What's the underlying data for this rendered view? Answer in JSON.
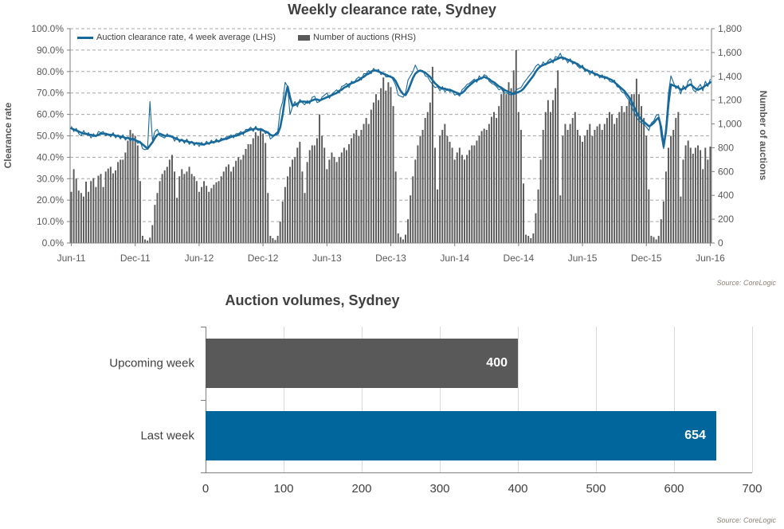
{
  "colors": {
    "line_blue": "#17699B",
    "bar_gray": "#595959",
    "volume_blue": "#00669C",
    "gridline": "#a6a6a6",
    "axis_line": "#7f7f7f",
    "text_dark": "#404040",
    "text_axis": "#595959",
    "source_text": "#8c8276",
    "value_label_white": "#ffffff"
  },
  "chart_data": [
    {
      "type": "combo",
      "title": "Weekly clearance rate, Sydney",
      "source": "Source: CoreLogic",
      "grid": "horizontal-dashed",
      "legend_position": "top-left-inside",
      "x_unit": "weeks from Jun-2011 to Jun-2016",
      "x_tick_labels": [
        "Jun-11",
        "Dec-11",
        "Jun-12",
        "Dec-12",
        "Jun-13",
        "Dec-13",
        "Jun-14",
        "Dec-14",
        "Jun-15",
        "Dec-15",
        "Jun-16"
      ],
      "x_tick_week_indices": [
        0,
        26,
        52,
        78,
        104,
        130,
        156,
        182,
        208,
        234,
        260
      ],
      "axes": {
        "left": {
          "label": "Clearance rate",
          "min": 0,
          "max": 100,
          "tick_step": 10,
          "tick_labels": [
            "0.0%",
            "10.0%",
            "20.0%",
            "30.0%",
            "40.0%",
            "50.0%",
            "60.0%",
            "70.0%",
            "80.0%",
            "90.0%",
            "100.0%"
          ]
        },
        "right": {
          "label": "Number of auctions",
          "min": 0,
          "max": 1800,
          "tick_step": 200,
          "tick_labels": [
            "0",
            "200",
            "400",
            "600",
            "800",
            "1,000",
            "1,200",
            "1,400",
            "1,600",
            "1,800"
          ]
        }
      },
      "series": [
        {
          "name": "Auction clearance rate, 4 week average (LHS)",
          "type": "line",
          "axis": "left",
          "style": "thick",
          "color": "#17699B",
          "values": [
            53.5,
            53,
            52.5,
            52,
            51.5,
            51,
            51,
            50.5,
            50.5,
            50,
            50,
            50.5,
            51,
            51,
            51,
            50.5,
            50.5,
            50.5,
            50,
            50,
            49.5,
            49.5,
            49,
            49,
            48.5,
            48.5,
            48,
            47.5,
            47,
            46,
            45,
            44,
            45.5,
            47,
            49,
            50.5,
            51,
            50.5,
            50,
            50,
            50,
            49.5,
            49,
            48.5,
            48,
            48,
            47.5,
            47.5,
            47,
            47,
            46.5,
            46.5,
            46.5,
            46,
            46,
            46.5,
            46.5,
            47,
            47,
            47.5,
            47.5,
            48,
            48.5,
            48.5,
            49,
            49.5,
            50,
            50,
            50.5,
            51,
            51.5,
            52,
            52.5,
            53,
            53,
            53.5,
            53,
            53,
            52.5,
            52,
            51.5,
            50.5,
            50,
            50.5,
            51,
            54,
            60,
            68,
            73,
            68,
            64,
            64.5,
            65,
            66,
            66,
            66,
            65.5,
            66,
            66.5,
            67,
            67,
            66.5,
            67,
            67.5,
            68,
            68.5,
            69,
            69.5,
            70,
            71,
            71.5,
            72.5,
            73,
            74,
            74.5,
            75,
            75.5,
            76,
            77,
            77.5,
            78.5,
            79,
            80,
            80.5,
            80.5,
            80,
            79.5,
            79,
            78.5,
            78,
            77.5,
            77,
            75.5,
            73,
            71,
            69.5,
            69,
            71,
            74,
            77,
            79,
            80,
            80.5,
            80,
            79.5,
            78.5,
            77.5,
            76,
            74.5,
            73.5,
            72.5,
            72,
            72,
            71.5,
            71.5,
            71,
            70.5,
            70,
            69.5,
            70,
            71,
            72.5,
            73.5,
            74.5,
            75.5,
            76,
            76.5,
            77,
            77.5,
            77,
            76.5,
            75.5,
            75,
            74,
            73,
            72.5,
            71.5,
            71,
            70.5,
            70,
            69.5,
            70,
            70.5,
            71,
            72,
            73.5,
            75,
            76.5,
            78,
            80,
            81.5,
            82.5,
            83,
            83.5,
            84,
            84.5,
            85,
            85.5,
            86,
            86.5,
            86.5,
            86,
            85.5,
            85,
            84.5,
            84,
            83.5,
            82.5,
            82,
            81,
            80.5,
            80,
            79.5,
            79,
            78.5,
            78,
            77.5,
            77.5,
            77,
            76.5,
            76,
            75,
            74,
            73,
            72,
            71,
            69.5,
            68,
            66,
            63.5,
            61,
            59,
            57.5,
            56.5,
            55.5,
            54.5,
            55,
            56,
            57.5,
            58.5,
            54,
            45,
            52,
            65,
            74,
            73.5,
            73,
            72.5,
            71.5,
            72,
            72.5,
            73.5,
            74,
            73,
            72,
            71.5,
            72,
            72.5,
            73.5,
            74,
            75
          ]
        },
        {
          "name": "Auction clearance rate, weekly (thin line, not in legend)",
          "type": "line",
          "axis": "left",
          "style": "thin",
          "color": "#17699B",
          "values": [
            54.5,
            52,
            53.5,
            51,
            50,
            52.5,
            50.5,
            51.5,
            49,
            51,
            49.5,
            52,
            51.5,
            52,
            50,
            51,
            49.5,
            51.5,
            49,
            50.5,
            48.5,
            50.5,
            48,
            49.5,
            47.5,
            49,
            48.5,
            46.5,
            47.5,
            44,
            43.5,
            44,
            66,
            48,
            52,
            53,
            50,
            49.5,
            49,
            51,
            49.5,
            50,
            47.5,
            49.5,
            47,
            48.5,
            46.5,
            48.5,
            46,
            47.5,
            45.5,
            47,
            45,
            47,
            45.5,
            47.5,
            46,
            48,
            46.5,
            48.5,
            47,
            49,
            48,
            49.5,
            49.5,
            50.5,
            49,
            51,
            51,
            52,
            50.5,
            53,
            53,
            54,
            52,
            54.5,
            52.5,
            53.5,
            53,
            51,
            52,
            48.5,
            49.5,
            51,
            52,
            62,
            66,
            75,
            73,
            60,
            63.5,
            66,
            63.5,
            67,
            65.5,
            64.5,
            66.5,
            65,
            68,
            68.5,
            65.5,
            66,
            68,
            69,
            70,
            67.5,
            69.5,
            70.5,
            71.5,
            70,
            73,
            73.5,
            74.5,
            72.5,
            75.5,
            74.5,
            76.5,
            77.5,
            76,
            79,
            79,
            80.5,
            79,
            81.5,
            80,
            81,
            78.5,
            79.5,
            77.5,
            77.5,
            78,
            76,
            73.5,
            69,
            68.5,
            68,
            70,
            76,
            78,
            80,
            83,
            80.5,
            80,
            80.5,
            78,
            77.5,
            75.5,
            74,
            72.5,
            73,
            71,
            73,
            70.5,
            72,
            70.5,
            71,
            69,
            69.5,
            68.5,
            71.5,
            72.5,
            74,
            74.5,
            75.5,
            76.5,
            75,
            78,
            76.5,
            78.5,
            78,
            75.5,
            74.5,
            74,
            73,
            71.5,
            72,
            70,
            70,
            69.5,
            69,
            69.5,
            71.5,
            72,
            72.5,
            74.5,
            76,
            77.5,
            79,
            80.5,
            82.5,
            83.5,
            82,
            84.5,
            83,
            85,
            86,
            84,
            87,
            86.5,
            88.5,
            85.5,
            86.5,
            84,
            86,
            83.5,
            84.5,
            82.5,
            81.5,
            83,
            80,
            81,
            78.5,
            80.5,
            78,
            79,
            77,
            78.5,
            76.5,
            77.5,
            75.5,
            75,
            76,
            73,
            72.5,
            70.5,
            70,
            68,
            66.5,
            63.5,
            61,
            58.5,
            57,
            56,
            55.5,
            54,
            52.5,
            56,
            57,
            59.5,
            60,
            50,
            44,
            55,
            70,
            78,
            75,
            72,
            73.5,
            69.5,
            73.5,
            71.5,
            75.5,
            76.5,
            71.5,
            70.5,
            72.5,
            74,
            71,
            75.5,
            73,
            76.5
          ]
        },
        {
          "name": "Number of auctions (RHS)",
          "type": "bar",
          "axis": "right",
          "color": "#595959",
          "values": [
            430,
            620,
            540,
            440,
            420,
            390,
            515,
            430,
            520,
            545,
            470,
            565,
            580,
            470,
            600,
            625,
            640,
            585,
            610,
            680,
            700,
            700,
            760,
            860,
            950,
            920,
            900,
            820,
            520,
            60,
            30,
            20,
            45,
            150,
            320,
            420,
            520,
            580,
            610,
            640,
            700,
            740,
            600,
            380,
            560,
            620,
            580,
            600,
            640,
            580,
            560,
            520,
            430,
            470,
            520,
            480,
            430,
            460,
            490,
            510,
            520,
            560,
            600,
            640,
            660,
            600,
            640,
            690,
            720,
            700,
            740,
            790,
            830,
            830,
            880,
            930,
            900,
            950,
            920,
            840,
            420,
            60,
            40,
            25,
            60,
            180,
            350,
            470,
            560,
            640,
            700,
            720,
            800,
            850,
            600,
            420,
            680,
            780,
            820,
            820,
            880,
            1080,
            900,
            800,
            620,
            700,
            760,
            720,
            680,
            720,
            760,
            800,
            780,
            830,
            880,
            920,
            950,
            900,
            950,
            1000,
            1050,
            1000,
            1120,
            1180,
            1250,
            1200,
            1300,
            1390,
            1280,
            1350,
            1310,
            1150,
            600,
            80,
            50,
            30,
            70,
            200,
            400,
            560,
            700,
            820,
            900,
            950,
            1050,
            1100,
            1180,
            1480,
            800,
            450,
            900,
            950,
            1000,
            900,
            850,
            800,
            700,
            760,
            800,
            740,
            700,
            740,
            780,
            820,
            820,
            860,
            900,
            940,
            960,
            950,
            1000,
            1060,
            1100,
            1050,
            1150,
            1250,
            1300,
            1250,
            1350,
            1300,
            1450,
            1620,
            1100,
            950,
            500,
            70,
            60,
            40,
            80,
            250,
            450,
            700,
            950,
            1100,
            1200,
            1100,
            1200,
            1300,
            1450,
            400,
            900,
            1000,
            950,
            1000,
            1050,
            1100,
            950,
            900,
            850,
            900,
            950,
            1000,
            900,
            950,
            980,
            1000,
            950,
            1000,
            1050,
            1100,
            1080,
            1000,
            1050,
            1100,
            1150,
            1100,
            1150,
            1200,
            1250,
            1250,
            1380,
            1250,
            1150,
            1050,
            900,
            450,
            60,
            50,
            30,
            60,
            200,
            350,
            600,
            800,
            900,
            950,
            1050,
            1100,
            390,
            700,
            820,
            860,
            800,
            750,
            800,
            820,
            780,
            620,
            800,
            700,
            810
          ]
        }
      ]
    },
    {
      "type": "bar",
      "orientation": "horizontal",
      "title": "Auction volumes, Sydney",
      "source": "Source: CoreLogic",
      "categories": [
        "Upcoming week",
        "Last week"
      ],
      "values": [
        400,
        654
      ],
      "value_labels": [
        "400",
        "654"
      ],
      "bar_colors": [
        "#595959",
        "#00669C"
      ],
      "xlim": [
        0,
        700
      ],
      "x_tick_step": 100,
      "x_tick_labels": [
        "0",
        "100",
        "200",
        "300",
        "400",
        "500",
        "600",
        "700"
      ],
      "grid": "vertical-solid",
      "value_label_color": "#ffffff"
    }
  ]
}
